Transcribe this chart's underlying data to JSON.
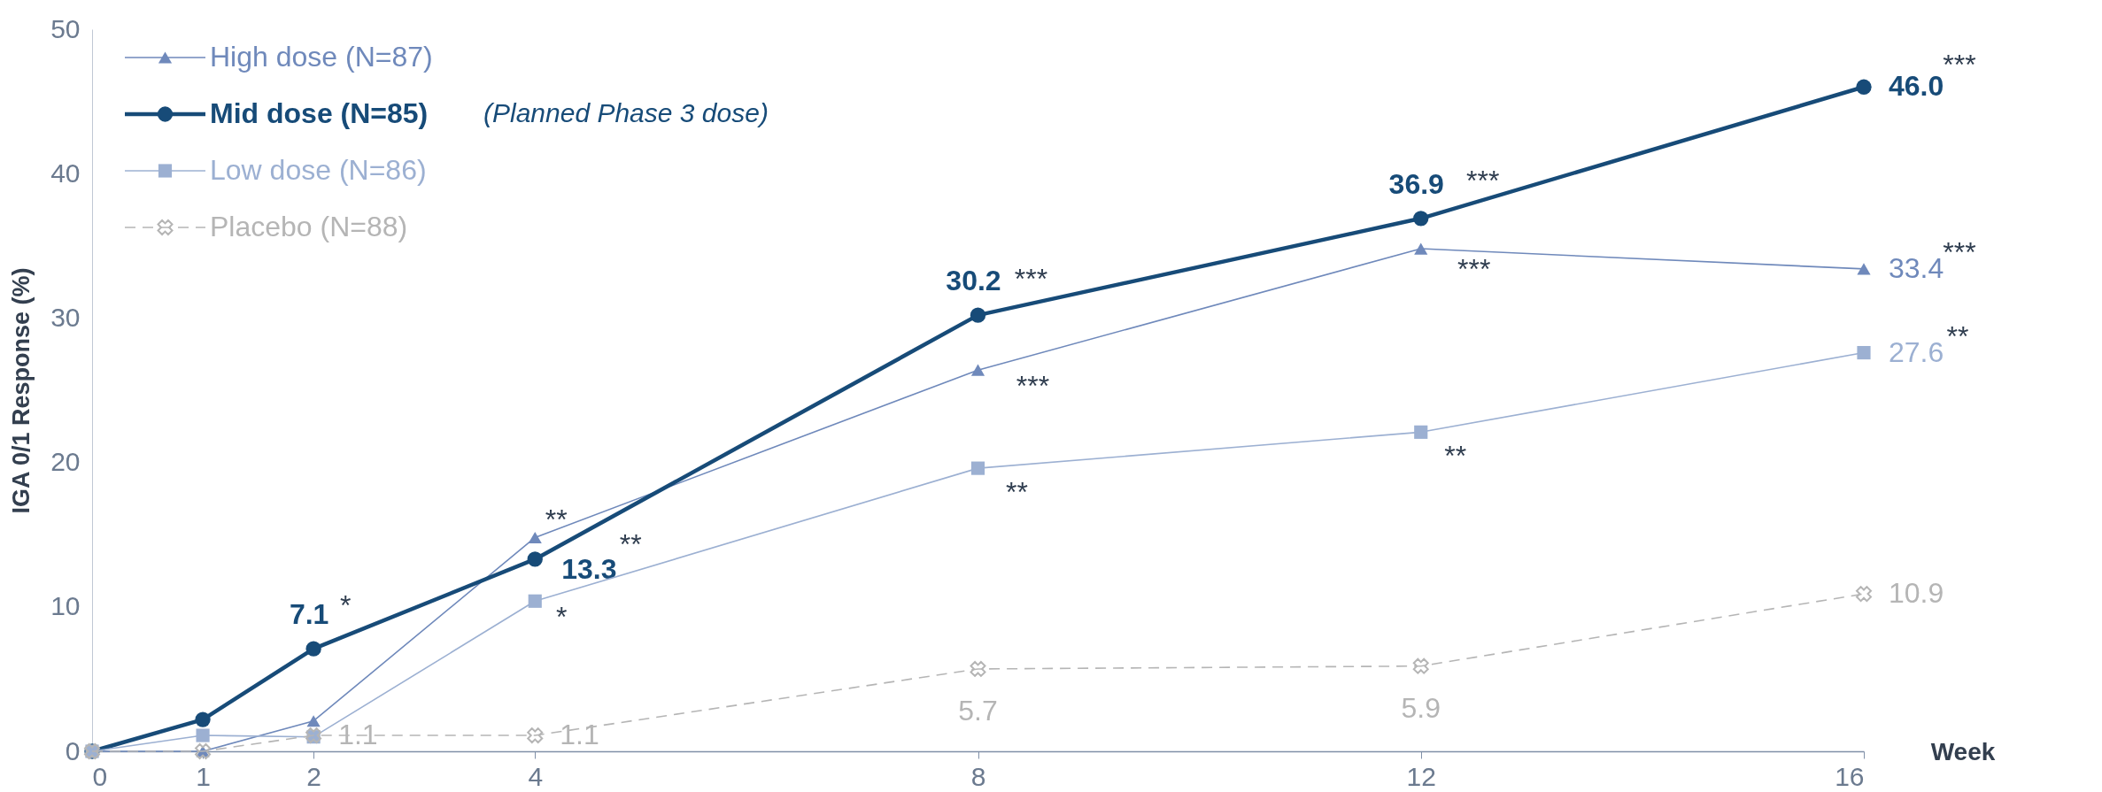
{
  "chart_data": {
    "type": "line",
    "ylabel": "IGA 0/1 Response (%)",
    "xlabel": "Week",
    "x": [
      0,
      1,
      2,
      4,
      8,
      12,
      16
    ],
    "xlim": [
      0,
      16
    ],
    "xticks": [
      0,
      1,
      2,
      4,
      8,
      12,
      16
    ],
    "ylim": [
      0,
      50
    ],
    "yticks": [
      0,
      10,
      20,
      30,
      40,
      50
    ],
    "grid": false,
    "legend": "top left",
    "series": [
      {
        "name": "High dose (N=87)",
        "color": "#6f89bb",
        "marker": "triangle",
        "line_style": "solid",
        "values": [
          0,
          0,
          2.1,
          14.8,
          26.4,
          34.8,
          33.4
        ],
        "value_labels": [
          null,
          null,
          null,
          null,
          null,
          null,
          "33.4"
        ]
      },
      {
        "name": "Mid dose (N=85)",
        "color": "#174b78",
        "marker": "circle",
        "line_style": "solid",
        "values": [
          0,
          2.2,
          7.1,
          13.3,
          30.2,
          36.9,
          46.0
        ],
        "value_labels": [
          null,
          null,
          "7.1",
          "13.3",
          "30.2",
          "36.9",
          "46.0"
        ]
      },
      {
        "name": "Low dose (N=86)",
        "color": "#9cb0d2",
        "marker": "square",
        "line_style": "solid",
        "values": [
          0,
          1.1,
          1.0,
          10.4,
          19.6,
          22.1,
          27.6
        ],
        "value_labels": [
          null,
          null,
          null,
          null,
          null,
          null,
          "27.6"
        ]
      },
      {
        "name": "Placebo (N=88)",
        "color": "#b5b5b5",
        "marker": "cross",
        "line_style": "dashed",
        "values": [
          0,
          0,
          1.1,
          1.1,
          5.7,
          5.9,
          10.9
        ],
        "value_labels": [
          null,
          null,
          "1.1",
          "1.1",
          "5.7",
          "5.9",
          "10.9"
        ]
      }
    ],
    "annotations": [
      "(Planned Phase 3 dose)",
      {
        "text": "*",
        "x": 2,
        "y": 7.1
      },
      {
        "text": "**",
        "x": 4,
        "y": 14.8
      },
      {
        "text": "**",
        "x": 4,
        "y": 13.3
      },
      {
        "text": "*",
        "x": 4,
        "y": 10.4
      },
      {
        "text": "***",
        "x": 8,
        "y": 30.2
      },
      {
        "text": "***",
        "x": 8,
        "y": 26.4
      },
      {
        "text": "**",
        "x": 8,
        "y": 19.6
      },
      {
        "text": "***",
        "x": 12,
        "y": 36.9
      },
      {
        "text": "***",
        "x": 12,
        "y": 34.8
      },
      {
        "text": "**",
        "x": 12,
        "y": 22.1
      },
      {
        "text": "***",
        "x": 16,
        "y": 46.0
      },
      {
        "text": "***",
        "x": 16,
        "y": 33.4
      },
      {
        "text": "**",
        "x": 16,
        "y": 27.6
      }
    ]
  }
}
